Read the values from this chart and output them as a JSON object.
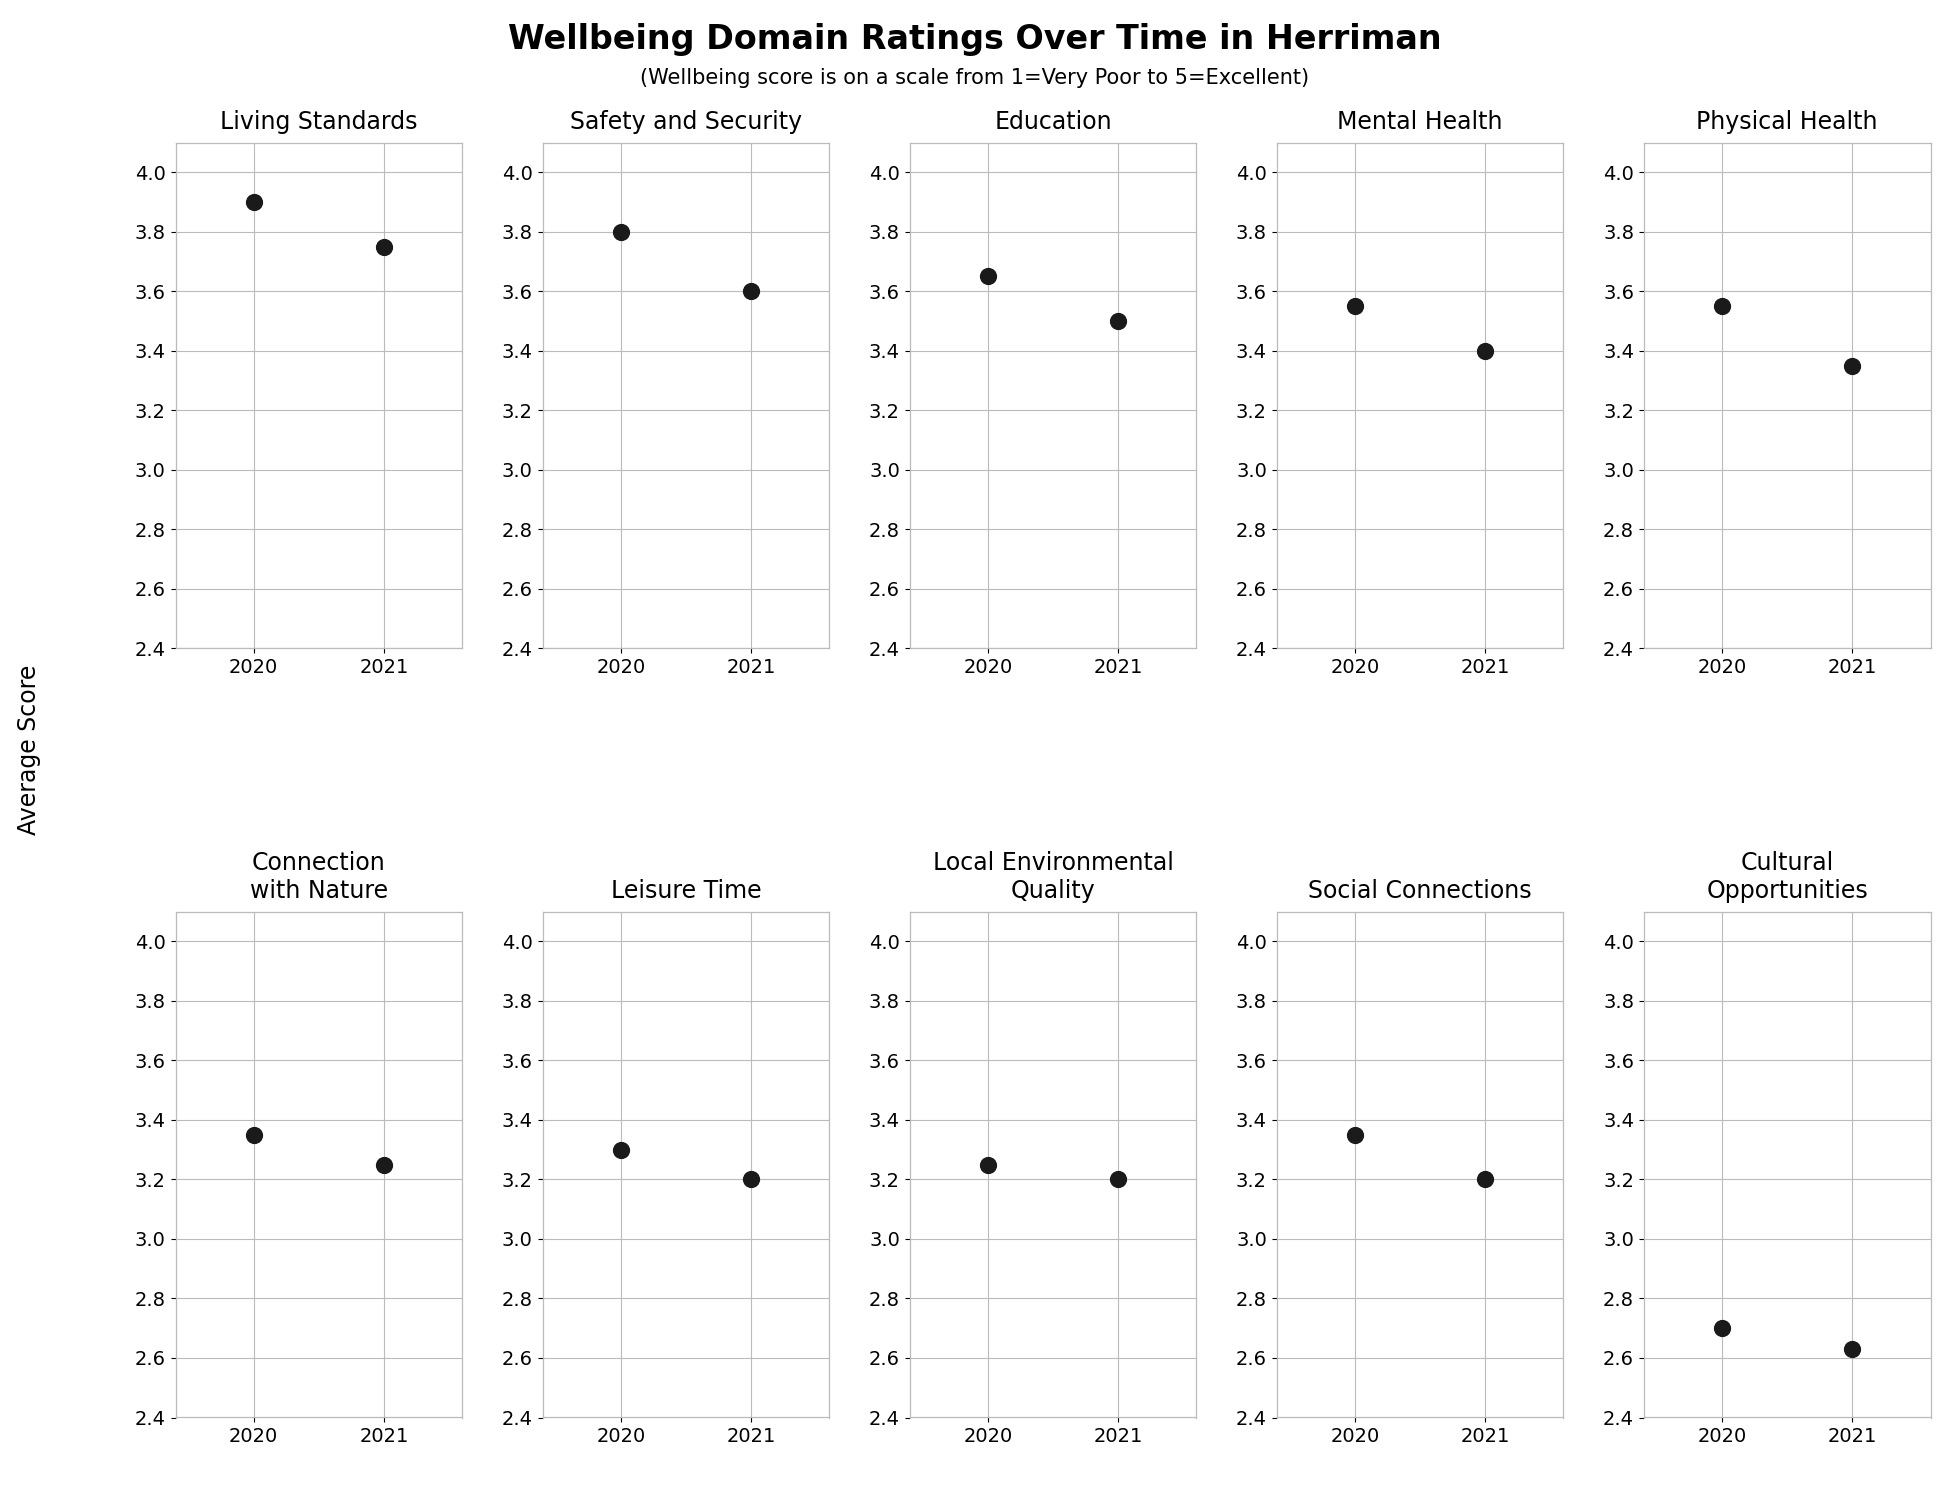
{
  "title": "Wellbeing Domain Ratings Over Time in Herriman",
  "subtitle": "(Wellbeing score is on a scale from 1=Very Poor to 5=Excellent)",
  "ylabel": "Average Score",
  "categories": [
    "Living Standards",
    "Safety and Security",
    "Education",
    "Mental Health",
    "Physical Health",
    "Connection\nwith Nature",
    "Leisure Time",
    "Local Environmental\nQuality",
    "Social Connections",
    "Cultural\nOpportunities"
  ],
  "values_2020": [
    3.9,
    3.8,
    3.65,
    3.55,
    3.55,
    3.35,
    3.3,
    3.25,
    3.35,
    2.7
  ],
  "values_2021": [
    3.75,
    3.6,
    3.5,
    3.4,
    3.35,
    3.25,
    3.2,
    3.2,
    3.2,
    2.63
  ],
  "years": [
    "2020",
    "2021"
  ],
  "ylim": [
    2.4,
    4.1
  ],
  "yticks": [
    2.4,
    2.6,
    2.8,
    3.0,
    3.2,
    3.4,
    3.6,
    3.8,
    4.0
  ],
  "dot_color": "#1a1a1a",
  "dot_size": 130,
  "grid_color": "#bbbbbb",
  "bg_color": "#ffffff",
  "title_fontsize": 24,
  "subtitle_fontsize": 15,
  "tick_fontsize": 14,
  "subplot_title_fontsize": 17,
  "ylabel_fontsize": 17
}
